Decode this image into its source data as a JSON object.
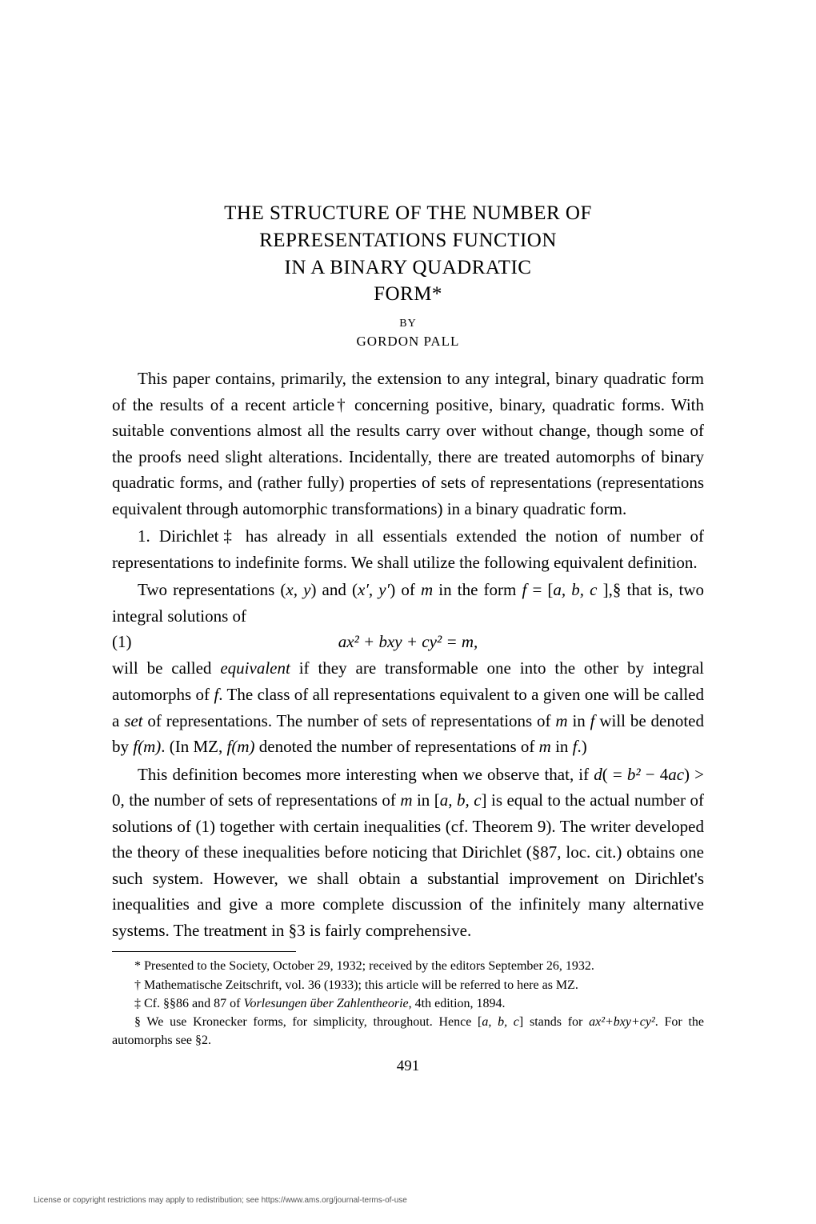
{
  "title": {
    "line1": "THE STRUCTURE OF THE NUMBER OF",
    "line2": "REPRESENTATIONS FUNCTION",
    "line3": "IN A BINARY QUADRATIC",
    "line4": "FORM*"
  },
  "by_label": "BY",
  "author": "GORDON PALL",
  "paragraphs": {
    "p1": "This paper contains, primarily, the extension to any integral, binary quadratic form of the results of a recent article† concerning positive, binary, quadratic forms. With suitable conventions almost all the results carry over without change, though some of the proofs need slight alterations. Incidentally, there are treated automorphs of binary quadratic forms, and (rather fully) properties of sets of representations (representations equivalent through automorphic transformations) in a binary quadratic form.",
    "p2": "1. Dirichlet‡ has already in all essentials extended the notion of number of representations to indefinite forms. We shall utilize the following equivalent definition.",
    "p3_pre": "Two representations (",
    "p3_xy": "x, y",
    "p3_mid1": ") and (",
    "p3_xpyp": "x′, y′",
    "p3_mid2": ") of ",
    "p3_m": "m",
    "p3_mid3": " in the form ",
    "p3_f": "f",
    "p3_mid4": " = [",
    "p3_abc": "a, b, c",
    "p3_mid5": " ],§ that is, two integral solutions of",
    "eq1_num": "(1)",
    "eq1": "ax² + bxy + cy² = m,",
    "p4_pre": "will be called ",
    "p4_equiv": "equivalent",
    "p4_mid1": " if they are transformable one into the other by integral automorphs of ",
    "p4_f": "f",
    "p4_mid2": ". The class of all representations equivalent to a given one will be called a ",
    "p4_set": "set",
    "p4_mid3": " of representations. The number of sets of representations of ",
    "p4_m1": "m",
    "p4_mid4": " in ",
    "p4_f2": "f",
    "p4_mid5": " will be denoted by ",
    "p4_fm": "f(m)",
    "p4_mid6": ". (In MZ, ",
    "p4_fm2": "f(m)",
    "p4_mid7": " denoted the number of representations of ",
    "p4_m2": "m",
    "p4_mid8": " in ",
    "p4_f3": "f",
    "p4_end": ".)",
    "p5_pre": "This definition becomes more interesting when we observe that, if ",
    "p5_d": "d",
    "p5_mid1": "( = ",
    "p5_b2": "b²",
    "p5_mid2": " − 4",
    "p5_ac": "ac",
    "p5_mid3": ") > 0, the number of sets of representations of ",
    "p5_m": "m",
    "p5_mid4": " in [",
    "p5_abc": "a, b, c",
    "p5_mid5": "] is equal to the actual number of solutions of (1) together with certain inequalities (cf. Theorem 9). The writer developed the theory of these inequalities before noticing that Dirichlet (§87, loc. cit.) obtains one such system. However, we shall obtain a substantial improvement on Dirichlet's inequalities and give a more complete discussion of the infinitely many alternative systems. The treatment in §3 is fairly comprehensive."
  },
  "footnotes": {
    "fn1": "* Presented to the Society, October 29, 1932; received by the editors September 26, 1932.",
    "fn2": "† Mathematische Zeitschrift, vol. 36 (1933); this article will be referred to here as MZ.",
    "fn3_pre": "‡ Cf. §§86 and 87 of ",
    "fn3_ital": "Vorlesungen über Zahlentheorie",
    "fn3_post": ", 4th edition, 1894.",
    "fn4_pre": "§ We use Kronecker forms, for simplicity, throughout. Hence [",
    "fn4_abc": "a, b, c",
    "fn4_mid": "] stands for ",
    "fn4_expr": "ax²+bxy+cy²",
    "fn4_post": ". For the automorphs see §2."
  },
  "pagenum": "491",
  "license": "License or copyright restrictions may apply to redistribution; see https://www.ams.org/journal-terms-of-use"
}
